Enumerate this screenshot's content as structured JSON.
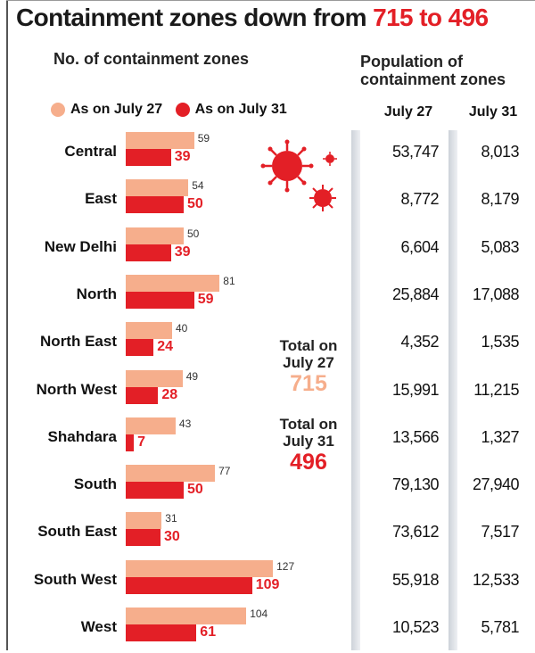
{
  "title": {
    "prefix": "Containment zones down from ",
    "highlight": "715 to 496"
  },
  "left_header": "No. of containment zones",
  "right_header": "Population of containment zones",
  "legend": {
    "jul27": "As on July 27",
    "jul31": "As on July 31"
  },
  "columns": {
    "jul27": "July 27",
    "jul31": "July 31"
  },
  "totals": {
    "jul27_label": "Total on July 27",
    "jul27_value": "715",
    "jul31_label": "Total on July 31",
    "jul31_value": "496"
  },
  "colors": {
    "jul27": "#f6ae8c",
    "jul31": "#e31f26",
    "shade": "#e9ecf0"
  },
  "chart_data": {
    "type": "bar",
    "title": "Containment zones down from 715 to 496",
    "categories": [
      "Central",
      "East",
      "New Delhi",
      "North",
      "North East",
      "North West",
      "Shahdara",
      "South",
      "South East",
      "South West",
      "West"
    ],
    "series": [
      {
        "name": "As on July 27",
        "values": [
          59,
          54,
          50,
          81,
          40,
          49,
          43,
          77,
          31,
          127,
          104
        ]
      },
      {
        "name": "As on July 31",
        "values": [
          39,
          50,
          39,
          59,
          24,
          28,
          7,
          50,
          30,
          109,
          61
        ]
      }
    ],
    "population": {
      "July 27": [
        "53,747",
        "8,772",
        "6,604",
        "25,884",
        "4,352",
        "15,991",
        "13,566",
        "79,130",
        "73,612",
        "55,918",
        "10,523"
      ],
      "July 31": [
        "8,013",
        "8,179",
        "5,083",
        "17,088",
        "1,535",
        "11,215",
        "1,327",
        "27,940",
        "7,517",
        "12,533",
        "5,781"
      ]
    }
  }
}
